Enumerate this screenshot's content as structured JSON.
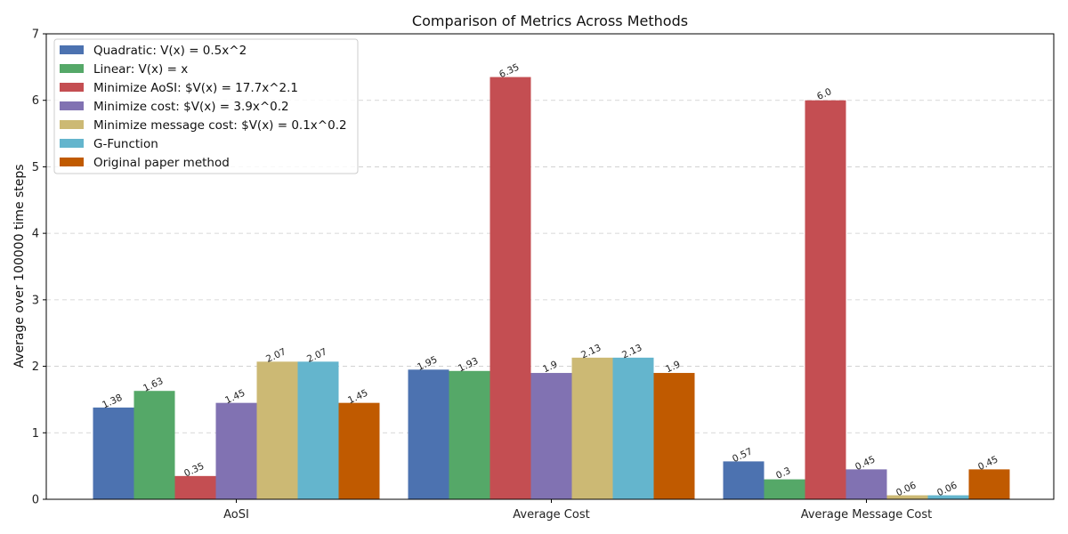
{
  "chart_data": {
    "type": "bar",
    "title": "Comparison of Metrics Across Methods",
    "xlabel": "",
    "ylabel": "Average over 100000 time steps",
    "categories": [
      "AoSI",
      "Average Cost",
      "Average Message Cost"
    ],
    "ylim": [
      0,
      7
    ],
    "yticks": [
      0,
      1,
      2,
      3,
      4,
      5,
      6,
      7
    ],
    "grid": "y-dashed",
    "legend_position": "top-left",
    "series": [
      {
        "name": "Quadratic: V(x) = 0.5x^2",
        "color": "#4c72b0",
        "values": [
          1.38,
          1.95,
          0.57
        ],
        "labels": [
          "1.38",
          "1.95",
          "0.57"
        ]
      },
      {
        "name": "Linear: V(x) = x",
        "color": "#55a868",
        "values": [
          1.63,
          1.93,
          0.3
        ],
        "labels": [
          "1.63",
          "1.93",
          "0.3"
        ]
      },
      {
        "name": "Minimize AoSI: $V(x) = 17.7x^2.1",
        "color": "#c44e52",
        "values": [
          0.35,
          6.35,
          6.0
        ],
        "labels": [
          "0.35",
          "6.35",
          "6.0"
        ]
      },
      {
        "name": "Minimize cost: $V(x) = 3.9x^0.2",
        "color": "#8172b2",
        "values": [
          1.45,
          1.9,
          0.45
        ],
        "labels": [
          "1.45",
          "1.9",
          "0.45"
        ]
      },
      {
        "name": "Minimize message cost: $V(x) = 0.1x^0.2",
        "color": "#ccb974",
        "values": [
          2.07,
          2.13,
          0.06
        ],
        "labels": [
          "2.07",
          "2.13",
          "0.06"
        ]
      },
      {
        "name": "G-Function",
        "color": "#64b5cd",
        "values": [
          2.07,
          2.13,
          0.06
        ],
        "labels": [
          "2.07",
          "2.13",
          "0.06"
        ]
      },
      {
        "name": "Original paper method",
        "color": "#c05a00",
        "values": [
          1.45,
          1.9,
          0.45
        ],
        "labels": [
          "1.45",
          "1.9",
          "0.45"
        ]
      }
    ]
  }
}
